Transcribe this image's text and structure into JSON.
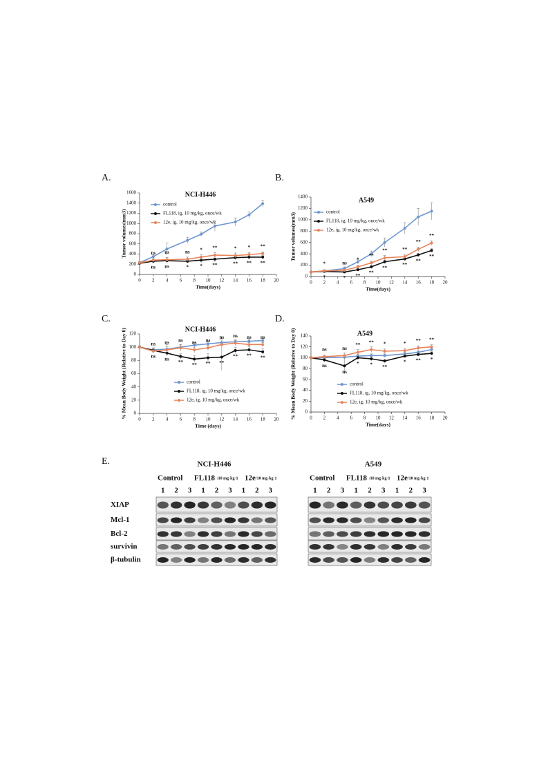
{
  "chart_data": [
    {
      "type": "line",
      "panel": "A.",
      "title": "NCI-H446",
      "xlabel": "Time(days)",
      "ylabel": "Tumor volumes(mm3)",
      "x": [
        0,
        2,
        4,
        7,
        9,
        11,
        14,
        16,
        18
      ],
      "xlim": [
        0,
        20
      ],
      "xticks": [
        0,
        2,
        4,
        6,
        8,
        10,
        12,
        14,
        16,
        18,
        20
      ],
      "ylim": [
        0,
        1600
      ],
      "yticks": [
        0,
        200,
        400,
        600,
        800,
        1000,
        1200,
        1400,
        1600
      ],
      "series": [
        {
          "name": "control",
          "color": "#6f96d0",
          "values": [
            230,
            350,
            500,
            670,
            790,
            950,
            1030,
            1170,
            1390
          ],
          "errors": [
            20,
            40,
            120,
            60,
            40,
            100,
            80,
            60,
            70
          ]
        },
        {
          "name": "FL118, ig, 10 mg/kg, once/wk",
          "color": "#111111",
          "values": [
            220,
            260,
            270,
            260,
            280,
            300,
            330,
            340,
            340
          ],
          "errors": [
            20,
            30,
            60,
            40,
            60,
            60,
            40,
            40,
            30
          ],
          "sig": [
            null,
            "ns",
            "ns",
            "*",
            "*",
            "**",
            "**",
            "**",
            "**"
          ]
        },
        {
          "name": "12e, ig, 10 mg/kg, once/wk",
          "color": "#e8845a",
          "values": [
            230,
            280,
            290,
            300,
            340,
            380,
            370,
            390,
            410
          ],
          "errors": [
            20,
            30,
            40,
            40,
            50,
            50,
            50,
            40,
            30
          ],
          "sig": [
            null,
            "ns",
            "ns",
            "ns",
            "*",
            "**",
            "*",
            "*",
            "**"
          ]
        }
      ]
    },
    {
      "type": "line",
      "panel": "B.",
      "title": "A549",
      "xlabel": "Time(days)",
      "ylabel": "Tumor volumes(mm3)",
      "x": [
        0,
        2,
        5,
        7,
        9,
        11,
        14,
        16,
        18
      ],
      "xlim": [
        0,
        20
      ],
      "xticks": [
        0,
        2,
        4,
        6,
        8,
        10,
        12,
        14,
        16,
        18,
        20
      ],
      "ylim": [
        0,
        1400
      ],
      "yticks": [
        0,
        200,
        400,
        600,
        800,
        1000,
        1200,
        1400
      ],
      "series": [
        {
          "name": "control",
          "color": "#6f96d0",
          "values": [
            80,
            100,
            140,
            260,
            400,
            600,
            850,
            1050,
            1150
          ],
          "errors": [
            10,
            20,
            30,
            40,
            50,
            80,
            100,
            150,
            150
          ]
        },
        {
          "name": "FL118,   ig, 10 mg/kg, once/wk",
          "color": "#111111",
          "values": [
            80,
            90,
            80,
            120,
            170,
            260,
            310,
            380,
            460
          ],
          "errors": [
            10,
            10,
            15,
            20,
            30,
            30,
            30,
            30,
            30
          ],
          "sig": [
            null,
            "*",
            "*",
            "**",
            "**",
            "**",
            "**",
            "**",
            "**"
          ]
        },
        {
          "name": "12e, ig, 10 mg/kg, once/wk",
          "color": "#e8845a",
          "values": [
            80,
            100,
            110,
            170,
            240,
            330,
            350,
            480,
            590
          ],
          "errors": [
            10,
            15,
            20,
            30,
            30,
            40,
            40,
            40,
            40
          ],
          "sig": [
            null,
            "*",
            "ns",
            "*",
            "**",
            "**",
            "**",
            "**",
            "**"
          ]
        }
      ]
    },
    {
      "type": "line",
      "panel": "C.",
      "title": "NCI-H446",
      "xlabel": "Time (days)",
      "ylabel": "% Mean Body Weight (Relative to Day 0)",
      "x": [
        0,
        2,
        4,
        6,
        8,
        10,
        12,
        14,
        16,
        18
      ],
      "xlim": [
        0,
        20
      ],
      "xticks": [
        0,
        2,
        4,
        6,
        8,
        10,
        12,
        14,
        16,
        18,
        20
      ],
      "ylim": [
        0,
        120
      ],
      "yticks": [
        0,
        20,
        40,
        60,
        80,
        100,
        120
      ],
      "series": [
        {
          "name": "control",
          "color": "#6f96d0",
          "values": [
            100,
            96,
            97,
            100,
            103,
            105,
            107,
            108,
            109,
            110
          ],
          "errors": [
            2,
            3,
            4,
            4,
            4,
            4,
            4,
            3,
            3,
            3
          ]
        },
        {
          "name": "FL118, ig, 10 mg/kg, once/wk",
          "color": "#111111",
          "values": [
            100,
            95,
            91,
            86,
            82,
            84,
            85,
            95,
            96,
            93
          ],
          "errors": [
            2,
            3,
            4,
            4,
            5,
            6,
            20,
            5,
            5,
            5
          ],
          "sig": [
            null,
            "ns",
            "ns",
            "**",
            "**",
            "**",
            "**",
            "**",
            "**",
            "**"
          ]
        },
        {
          "name": "12e, ig, 10 mg/kg, once/wk",
          "color": "#e8845a",
          "values": [
            100,
            94,
            96,
            99,
            96,
            99,
            104,
            106,
            104,
            104
          ],
          "errors": [
            2,
            3,
            8,
            5,
            4,
            4,
            4,
            4,
            3,
            3
          ],
          "sig": [
            null,
            "ns",
            "ns",
            "ns",
            "ns",
            "ns",
            "ns",
            "ns",
            "ns",
            "ns"
          ]
        }
      ]
    },
    {
      "type": "line",
      "panel": "D.",
      "title": "A549",
      "xlabel": "Time(days)",
      "ylabel": "% Mean Body Weight (Relative to Day 0)",
      "x": [
        0,
        2,
        5,
        7,
        9,
        11,
        14,
        16,
        18
      ],
      "xlim": [
        0,
        20
      ],
      "xticks": [
        0,
        2,
        4,
        6,
        8,
        10,
        12,
        14,
        16,
        18,
        20
      ],
      "ylim": [
        0,
        140
      ],
      "yticks": [
        0,
        20,
        40,
        60,
        80,
        100,
        120,
        140
      ],
      "series": [
        {
          "name": "control",
          "color": "#6f96d0",
          "values": [
            100,
            100,
            101,
            103,
            104,
            104,
            107,
            110,
            115
          ],
          "errors": [
            2,
            3,
            3,
            3,
            3,
            3,
            3,
            3,
            3
          ]
        },
        {
          "name": "FL118, ig, 10 mg/kg, once/wk",
          "color": "#111111",
          "values": [
            100,
            96,
            85,
            100,
            98,
            94,
            103,
            106,
            108
          ],
          "errors": [
            2,
            4,
            15,
            4,
            4,
            3,
            3,
            3,
            3
          ],
          "sig": [
            null,
            "ns",
            "ns",
            "*",
            "*",
            "**",
            "*",
            "**",
            "*"
          ]
        },
        {
          "name": "12e, ig, 10 mg/kg, once/wk",
          "color": "#e8845a",
          "values": [
            100,
            102,
            104,
            110,
            115,
            112,
            113,
            118,
            120
          ],
          "errors": [
            2,
            3,
            5,
            5,
            5,
            4,
            4,
            4,
            4
          ],
          "sig": [
            null,
            "ns",
            "ns",
            "**",
            "**",
            "*",
            "*",
            "**",
            "**"
          ]
        }
      ]
    }
  ],
  "blot": {
    "panel": "E.",
    "rows": [
      "XIAP",
      "Mcl-1",
      "Bcl-2",
      "survivin",
      "β-tubulin"
    ],
    "groups": [
      {
        "title": "NCI-H446",
        "header": [
          "Control",
          "FL118",
          "/10 mg·kg-1",
          "12e",
          "/10 mg·kg-1"
        ],
        "lanes": [
          "1",
          "2",
          "3",
          "1",
          "2",
          "3",
          "1",
          "2",
          "3"
        ]
      },
      {
        "title": "A549",
        "header": [
          "Control",
          "FL118",
          "/10 mg·kg-1",
          "12e",
          "/10 mg·kg-1"
        ],
        "lanes": [
          "1",
          "2",
          "3",
          "1",
          "2",
          "3",
          "1",
          "2",
          "3"
        ]
      }
    ]
  }
}
